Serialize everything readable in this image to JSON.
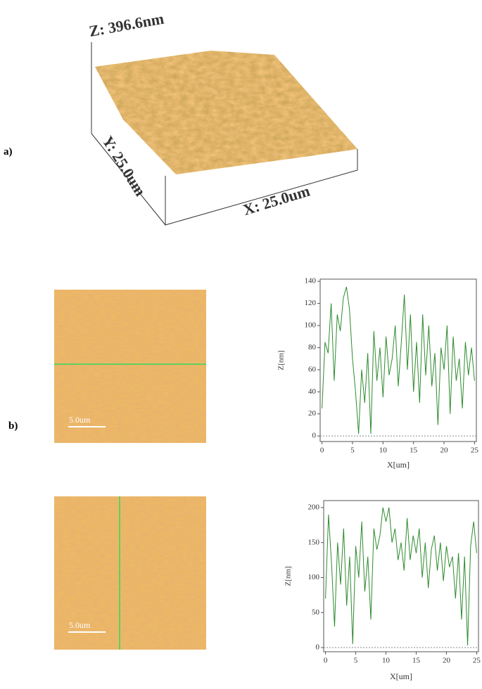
{
  "panel_a": {
    "label": "a)",
    "z_label": "Z: 396.6nm",
    "y_label": "Y: 25.0um",
    "x_label": "X: 25.0um"
  },
  "panel_b": {
    "label": "b)",
    "scale_bar_1": "5.0um",
    "scale_bar_2": "5.0um"
  },
  "chart_data": [
    {
      "type": "line",
      "xlabel": "X[um]",
      "ylabel": "Z[nm]",
      "xlim": [
        -0.3,
        25.3
      ],
      "ylim": [
        -5,
        142
      ],
      "xticks": [
        0,
        5,
        10,
        15,
        20,
        25
      ],
      "yticks": [
        0,
        20,
        40,
        60,
        80,
        100,
        120,
        140
      ],
      "zero_line": true,
      "x": [
        0,
        0.5,
        1,
        1.5,
        2,
        2.5,
        3,
        3.5,
        4,
        4.5,
        5,
        5.5,
        6,
        6.5,
        7,
        7.5,
        8,
        8.5,
        9,
        9.5,
        10,
        10.5,
        11,
        11.5,
        12,
        12.5,
        13,
        13.5,
        14,
        14.5,
        15,
        15.5,
        16,
        16.5,
        17,
        17.5,
        18,
        18.5,
        19,
        19.5,
        20,
        20.5,
        21,
        21.5,
        22,
        22.5,
        23,
        23.5,
        24,
        24.5,
        25
      ],
      "series": [
        {
          "color": "#2e8b2e",
          "values": [
            25,
            85,
            75,
            120,
            50,
            110,
            95,
            125,
            135,
            115,
            70,
            40,
            2,
            60,
            30,
            75,
            2,
            95,
            50,
            80,
            35,
            90,
            55,
            70,
            100,
            45,
            85,
            128,
            60,
            110,
            40,
            85,
            30,
            110,
            55,
            100,
            45,
            75,
            10,
            80,
            60,
            100,
            20,
            90,
            50,
            70,
            25,
            85,
            55,
            80,
            50
          ]
        }
      ]
    },
    {
      "type": "line",
      "xlabel": "X[um]",
      "ylabel": "Z[nm]",
      "xlim": [
        -0.3,
        25.3
      ],
      "ylim": [
        -6,
        210
      ],
      "xticks": [
        0,
        5,
        10,
        15,
        20,
        25
      ],
      "yticks": [
        0,
        50,
        100,
        150,
        200
      ],
      "zero_line": true,
      "x": [
        0,
        0.5,
        1,
        1.5,
        2,
        2.5,
        3,
        3.5,
        4,
        4.5,
        5,
        5.5,
        6,
        6.5,
        7,
        7.5,
        8,
        8.5,
        9,
        9.5,
        10,
        10.5,
        11,
        11.5,
        12,
        12.5,
        13,
        13.5,
        14,
        14.5,
        15,
        15.5,
        16,
        16.5,
        17,
        17.5,
        18,
        18.5,
        19,
        19.5,
        20,
        20.5,
        21,
        21.5,
        22,
        22.5,
        23,
        23.5,
        24,
        24.5,
        25
      ],
      "series": [
        {
          "color": "#2e8b2e",
          "values": [
            70,
            190,
            120,
            30,
            150,
            90,
            170,
            60,
            130,
            5,
            145,
            100,
            180,
            80,
            130,
            40,
            170,
            140,
            160,
            200,
            180,
            200,
            150,
            170,
            125,
            150,
            110,
            185,
            125,
            160,
            135,
            170,
            100,
            150,
            85,
            140,
            160,
            110,
            150,
            95,
            145,
            115,
            130,
            70,
            135,
            40,
            130,
            3,
            145,
            180,
            135
          ]
        }
      ]
    }
  ]
}
